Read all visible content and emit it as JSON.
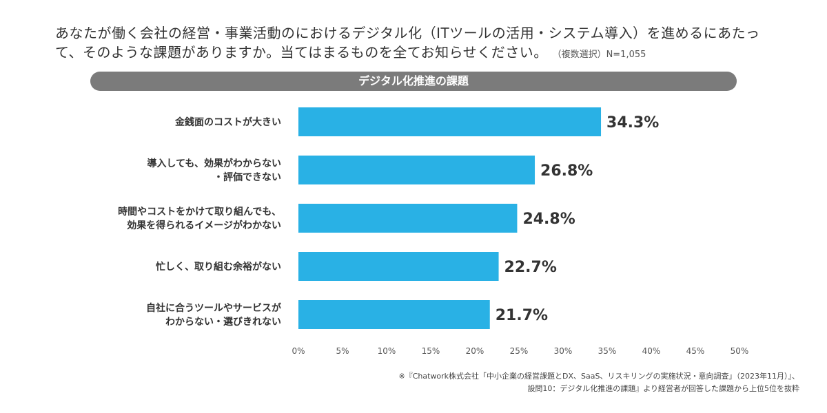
{
  "question": {
    "text": "あなたが働く会社の経営・事業活動のにおけるデジタル化（ITツールの活用・システム導入）を進めるにあたって、そのような課題がありますか。当てはまるものを全てお知らせください。",
    "note": "（複数選択）N=1,055"
  },
  "chart_data": {
    "type": "bar",
    "orientation": "horizontal",
    "title": "デジタル化推進の課題",
    "categories": [
      "金銭面のコストが大きい",
      "導入しても、効果がわからない\n・評価できない",
      "時間やコストをかけて取り組んでも、\n効果を得られるイメージがわかない",
      "忙しく、取り組む余裕がない",
      "自社に合うツールやサービスが\nわからない・選びきれない"
    ],
    "values": [
      34.3,
      26.8,
      24.8,
      22.7,
      21.7
    ],
    "value_labels": [
      "34.3%",
      "26.8%",
      "24.8%",
      "22.7%",
      "21.7%"
    ],
    "xlim": [
      0,
      50
    ],
    "ticks": [
      0,
      5,
      10,
      15,
      20,
      25,
      30,
      35,
      40,
      45,
      50
    ],
    "tick_labels": [
      "0%",
      "5%",
      "10%",
      "15%",
      "20%",
      "25%",
      "30%",
      "35%",
      "40%",
      "45%",
      "50%"
    ],
    "bar_color": "#29b1e5",
    "grid": false
  },
  "footnote": {
    "line1": "※『Chatwork株式会社「中小企業の経営課題とDX、SaaS、リスキリングの実施状況・意向調査」（2023年11月）』、",
    "line2": "設問10：デジタル化推進の課題』より経営者が回答した課題から上位5位を抜粋"
  }
}
